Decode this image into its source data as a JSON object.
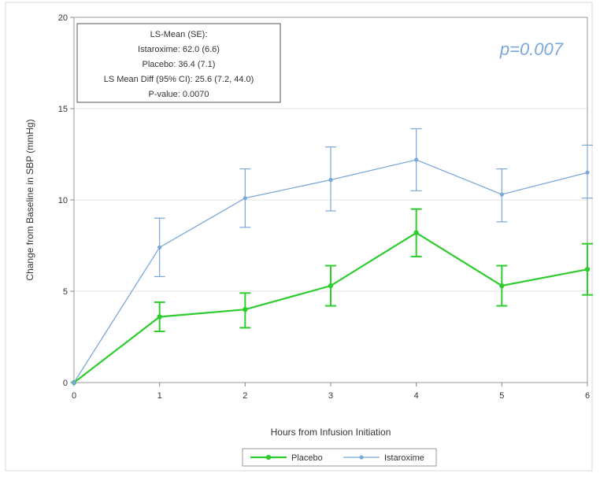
{
  "chart_data": {
    "type": "line",
    "title": "",
    "xlabel": "Hours from Infusion Initiation",
    "ylabel": "Change from Baseline in SBP (mmHg)",
    "xlim": [
      0,
      6
    ],
    "ylim": [
      0,
      20
    ],
    "x_ticks": [
      "0",
      "1",
      "2",
      "3",
      "4",
      "5",
      "6"
    ],
    "y_ticks": [
      "0",
      "5",
      "10",
      "15",
      "20"
    ],
    "grid": "horizontal",
    "legend_position": "bottom",
    "x": [
      0,
      1,
      2,
      3,
      4,
      5,
      6
    ],
    "series": [
      {
        "name": "Placebo",
        "color": "#2ecc2e",
        "values": [
          0,
          3.6,
          4.0,
          5.3,
          8.2,
          5.3,
          6.2
        ],
        "err_low": [
          0,
          2.8,
          3.0,
          4.2,
          6.9,
          4.2,
          4.8
        ],
        "err_high": [
          0,
          4.4,
          4.9,
          6.4,
          9.5,
          6.4,
          7.6
        ]
      },
      {
        "name": "Istaroxime",
        "color": "#7ba7d9",
        "values": [
          0,
          7.4,
          10.1,
          11.1,
          12.2,
          10.3,
          11.5
        ],
        "err_low": [
          0,
          5.8,
          8.5,
          9.4,
          10.5,
          8.8,
          10.1
        ],
        "err_high": [
          0,
          9.0,
          11.7,
          12.9,
          13.9,
          11.7,
          13.0
        ]
      }
    ],
    "annotations": {
      "stats_box": [
        "LS-Mean (SE):",
        "Istaroxime: 62.0 (6.6)",
        "Placebo: 36.4 (7.1)",
        "LS Mean Diff (95% CI): 25.6 (7.2, 44.0)",
        "P-value: 0.0070"
      ],
      "p_value": "p=0.007"
    }
  }
}
